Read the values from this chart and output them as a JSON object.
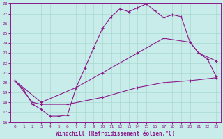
{
  "xlabel": "Windchill (Refroidissement éolien,°C)",
  "xlim": [
    -0.5,
    23.5
  ],
  "ylim": [
    16,
    28
  ],
  "yticks": [
    16,
    17,
    18,
    19,
    20,
    21,
    22,
    23,
    24,
    25,
    26,
    27,
    28
  ],
  "xticks": [
    0,
    1,
    2,
    3,
    4,
    5,
    6,
    7,
    8,
    9,
    10,
    11,
    12,
    13,
    14,
    15,
    16,
    17,
    18,
    19,
    20,
    21,
    22,
    23
  ],
  "background_color": "#c8ecea",
  "grid_color": "#a8d8d0",
  "line_color": "#8b1a8a",
  "curve1_x": [
    0,
    1,
    2,
    3,
    4,
    5,
    6,
    7,
    8,
    9,
    10,
    11,
    12,
    13,
    14,
    15,
    16,
    17,
    18,
    19,
    20,
    21,
    22,
    23
  ],
  "curve1_y": [
    20.2,
    19.3,
    17.8,
    17.3,
    16.6,
    16.6,
    16.7,
    19.5,
    21.5,
    23.5,
    25.5,
    26.7,
    27.5,
    27.2,
    27.6,
    28.0,
    27.3,
    26.6,
    26.9,
    26.7,
    24.1,
    23.0,
    22.4,
    20.6
  ],
  "curve2_x": [
    0,
    3,
    7,
    10,
    14,
    17,
    20,
    21,
    23
  ],
  "curve2_y": [
    20.2,
    18.0,
    19.5,
    21.0,
    23.0,
    24.5,
    24.1,
    23.0,
    22.2
  ],
  "curve3_x": [
    0,
    2,
    3,
    6,
    10,
    14,
    17,
    20,
    23
  ],
  "curve3_y": [
    20.2,
    18.0,
    17.8,
    17.8,
    18.5,
    19.5,
    20.0,
    20.2,
    20.5
  ]
}
